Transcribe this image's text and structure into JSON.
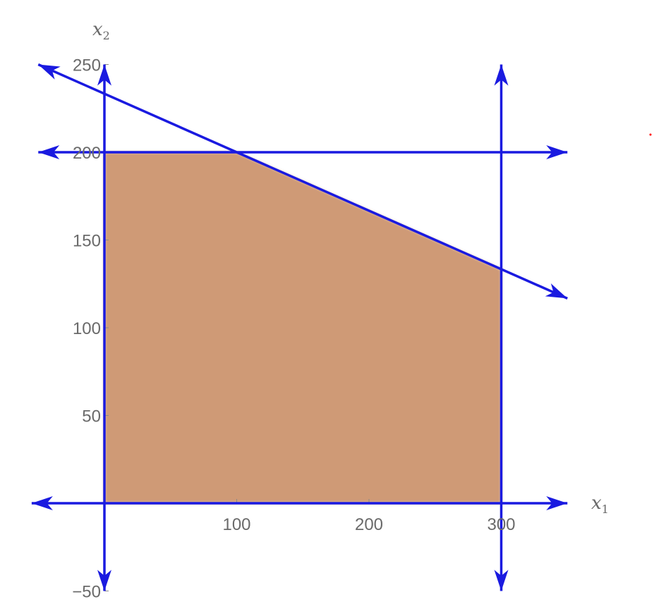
{
  "chart_data": {
    "type": "area",
    "title": "",
    "xlabel": {
      "base": "x",
      "sub": "1"
    },
    "ylabel": {
      "base": "x",
      "sub": "2"
    },
    "xlim": [
      -55,
      345
    ],
    "ylim": [
      -55,
      262
    ],
    "x_ticks": [
      {
        "value": 100,
        "label": "100"
      },
      {
        "value": 200,
        "label": "200"
      },
      {
        "value": 300,
        "label": "300"
      }
    ],
    "y_ticks": [
      {
        "value": -50,
        "label": "−50"
      },
      {
        "value": 50,
        "label": "50"
      },
      {
        "value": 100,
        "label": "100"
      },
      {
        "value": 150,
        "label": "150"
      },
      {
        "value": 200,
        "label": "200"
      },
      {
        "value": 250,
        "label": "250"
      }
    ],
    "feasible_region": {
      "vertices": [
        [
          0,
          0
        ],
        [
          0,
          200
        ],
        [
          100,
          200
        ],
        [
          300,
          133.3
        ],
        [
          300,
          0
        ]
      ],
      "color": "#cf9a76"
    },
    "constraint_lines": [
      {
        "name": "x₂ = 0",
        "from": [
          -55,
          0
        ],
        "to": [
          350,
          0
        ]
      },
      {
        "name": "x₁ = 0",
        "from": [
          0,
          250
        ],
        "to": [
          0,
          -50
        ]
      },
      {
        "name": "x₁ = 300",
        "from": [
          300,
          250
        ],
        "to": [
          300,
          -50
        ]
      },
      {
        "name": "x₂ = 200",
        "from": [
          -50,
          200
        ],
        "to": [
          350,
          200
        ]
      },
      {
        "name": "x₁ + 3x₂ = 700",
        "from": [
          -50,
          250
        ],
        "to": [
          350,
          116.7
        ]
      }
    ],
    "line_color": "#1a1ae0",
    "grid": false,
    "legend": "none"
  }
}
